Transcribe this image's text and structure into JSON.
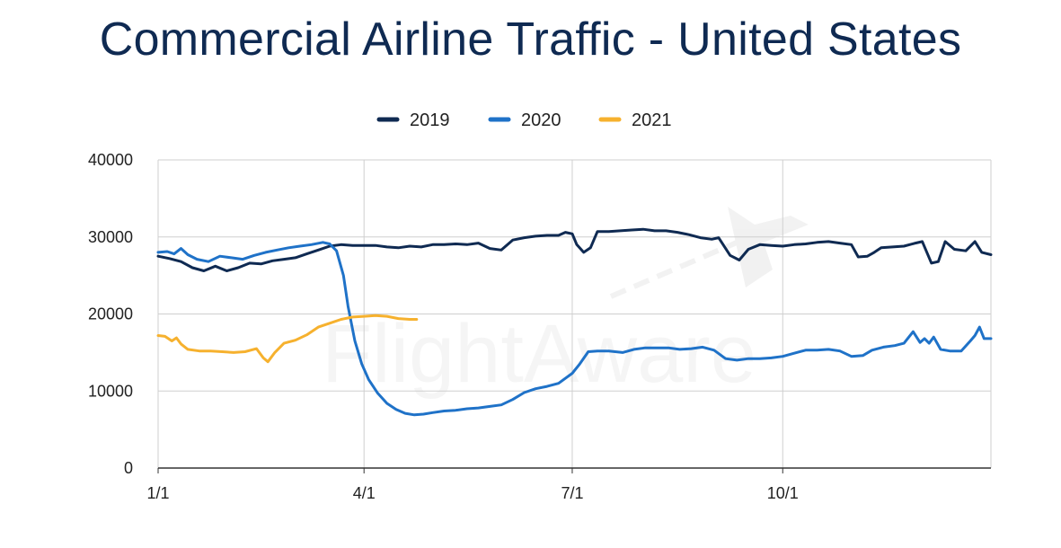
{
  "chart_data": {
    "type": "line",
    "title": "Commercial Airline Traffic - United States",
    "xlabel": "",
    "ylabel": "",
    "watermark": "FlightAware",
    "x_ticks": [
      {
        "label": "1/1",
        "day": 0
      },
      {
        "label": "4/1",
        "day": 90
      },
      {
        "label": "7/1",
        "day": 181
      },
      {
        "label": "10/1",
        "day": 273
      }
    ],
    "xlim": [
      0,
      364
    ],
    "ylim": [
      0,
      40000
    ],
    "y_ticks": [
      "40000",
      "30000",
      "20000",
      "10000",
      "0"
    ],
    "legend": [
      "2019",
      "2020",
      "2021"
    ],
    "legend_position": "top",
    "series": [
      {
        "name": "2019",
        "color": "#0f2a52",
        "points": [
          [
            0,
            27500
          ],
          [
            5,
            27200
          ],
          [
            10,
            26800
          ],
          [
            15,
            26000
          ],
          [
            20,
            25600
          ],
          [
            25,
            26200
          ],
          [
            30,
            25600
          ],
          [
            35,
            26000
          ],
          [
            40,
            26600
          ],
          [
            45,
            26500
          ],
          [
            50,
            26900
          ],
          [
            55,
            27100
          ],
          [
            60,
            27300
          ],
          [
            65,
            27800
          ],
          [
            70,
            28300
          ],
          [
            75,
            28800
          ],
          [
            80,
            29000
          ],
          [
            85,
            28900
          ],
          [
            90,
            28900
          ],
          [
            95,
            28900
          ],
          [
            100,
            28700
          ],
          [
            105,
            28600
          ],
          [
            110,
            28800
          ],
          [
            115,
            28700
          ],
          [
            120,
            29000
          ],
          [
            125,
            29000
          ],
          [
            130,
            29100
          ],
          [
            135,
            29000
          ],
          [
            140,
            29200
          ],
          [
            145,
            28500
          ],
          [
            150,
            28300
          ],
          [
            155,
            29600
          ],
          [
            160,
            29900
          ],
          [
            165,
            30100
          ],
          [
            170,
            30200
          ],
          [
            175,
            30200
          ],
          [
            178,
            30600
          ],
          [
            181,
            30400
          ],
          [
            183,
            29000
          ],
          [
            186,
            28000
          ],
          [
            189,
            28600
          ],
          [
            192,
            30700
          ],
          [
            197,
            30700
          ],
          [
            202,
            30800
          ],
          [
            207,
            30900
          ],
          [
            212,
            31000
          ],
          [
            217,
            30800
          ],
          [
            222,
            30800
          ],
          [
            227,
            30600
          ],
          [
            232,
            30300
          ],
          [
            237,
            29900
          ],
          [
            242,
            29700
          ],
          [
            245,
            29900
          ],
          [
            250,
            27600
          ],
          [
            254,
            27000
          ],
          [
            258,
            28400
          ],
          [
            263,
            29000
          ],
          [
            268,
            28900
          ],
          [
            273,
            28800
          ],
          [
            278,
            29000
          ],
          [
            283,
            29100
          ],
          [
            288,
            29300
          ],
          [
            293,
            29400
          ],
          [
            298,
            29200
          ],
          [
            303,
            29000
          ],
          [
            306,
            27400
          ],
          [
            310,
            27500
          ],
          [
            313,
            28000
          ],
          [
            316,
            28600
          ],
          [
            321,
            28700
          ],
          [
            326,
            28800
          ],
          [
            331,
            29200
          ],
          [
            334,
            29400
          ],
          [
            338,
            26600
          ],
          [
            341,
            26800
          ],
          [
            344,
            29400
          ],
          [
            348,
            28400
          ],
          [
            353,
            28200
          ],
          [
            357,
            29400
          ],
          [
            360,
            28000
          ],
          [
            364,
            27700
          ]
        ]
      },
      {
        "name": "2020",
        "color": "#1f72c8",
        "points": [
          [
            0,
            28000
          ],
          [
            4,
            28100
          ],
          [
            7,
            27800
          ],
          [
            10,
            28500
          ],
          [
            13,
            27700
          ],
          [
            17,
            27100
          ],
          [
            22,
            26800
          ],
          [
            27,
            27500
          ],
          [
            32,
            27300
          ],
          [
            37,
            27100
          ],
          [
            42,
            27600
          ],
          [
            47,
            28000
          ],
          [
            52,
            28300
          ],
          [
            57,
            28600
          ],
          [
            62,
            28800
          ],
          [
            67,
            29000
          ],
          [
            72,
            29300
          ],
          [
            75,
            29100
          ],
          [
            78,
            28200
          ],
          [
            81,
            25000
          ],
          [
            83,
            21000
          ],
          [
            86,
            16500
          ],
          [
            89,
            13500
          ],
          [
            92,
            11500
          ],
          [
            96,
            9700
          ],
          [
            100,
            8400
          ],
          [
            104,
            7600
          ],
          [
            108,
            7100
          ],
          [
            112,
            6900
          ],
          [
            116,
            7000
          ],
          [
            120,
            7200
          ],
          [
            125,
            7400
          ],
          [
            130,
            7500
          ],
          [
            135,
            7700
          ],
          [
            140,
            7800
          ],
          [
            145,
            8000
          ],
          [
            150,
            8200
          ],
          [
            155,
            8900
          ],
          [
            160,
            9800
          ],
          [
            165,
            10300
          ],
          [
            170,
            10600
          ],
          [
            175,
            11000
          ],
          [
            181,
            12300
          ],
          [
            184,
            13400
          ],
          [
            188,
            15100
          ],
          [
            192,
            15200
          ],
          [
            197,
            15200
          ],
          [
            203,
            15000
          ],
          [
            208,
            15400
          ],
          [
            213,
            15600
          ],
          [
            218,
            15600
          ],
          [
            223,
            15600
          ],
          [
            228,
            15400
          ],
          [
            233,
            15500
          ],
          [
            238,
            15700
          ],
          [
            243,
            15300
          ],
          [
            248,
            14200
          ],
          [
            253,
            14000
          ],
          [
            258,
            14200
          ],
          [
            263,
            14200
          ],
          [
            268,
            14300
          ],
          [
            273,
            14500
          ],
          [
            278,
            14900
          ],
          [
            283,
            15300
          ],
          [
            288,
            15300
          ],
          [
            293,
            15400
          ],
          [
            298,
            15200
          ],
          [
            303,
            14500
          ],
          [
            308,
            14600
          ],
          [
            312,
            15300
          ],
          [
            317,
            15700
          ],
          [
            322,
            15900
          ],
          [
            326,
            16200
          ],
          [
            330,
            17700
          ],
          [
            333,
            16300
          ],
          [
            335,
            16800
          ],
          [
            337,
            16200
          ],
          [
            339,
            17000
          ],
          [
            342,
            15400
          ],
          [
            346,
            15200
          ],
          [
            351,
            15200
          ],
          [
            355,
            16500
          ],
          [
            357,
            17200
          ],
          [
            359,
            18300
          ],
          [
            361,
            16800
          ],
          [
            364,
            16800
          ]
        ]
      },
      {
        "name": "2021",
        "color": "#f6b12e",
        "points": [
          [
            0,
            17200
          ],
          [
            3,
            17100
          ],
          [
            6,
            16500
          ],
          [
            8,
            16900
          ],
          [
            10,
            16100
          ],
          [
            13,
            15400
          ],
          [
            18,
            15200
          ],
          [
            23,
            15200
          ],
          [
            28,
            15100
          ],
          [
            33,
            15000
          ],
          [
            38,
            15100
          ],
          [
            43,
            15500
          ],
          [
            46,
            14300
          ],
          [
            48,
            13800
          ],
          [
            51,
            15000
          ],
          [
            55,
            16200
          ],
          [
            60,
            16600
          ],
          [
            65,
            17300
          ],
          [
            70,
            18300
          ],
          [
            75,
            18800
          ],
          [
            80,
            19300
          ],
          [
            85,
            19600
          ],
          [
            90,
            19700
          ],
          [
            95,
            19800
          ],
          [
            100,
            19700
          ],
          [
            105,
            19400
          ],
          [
            110,
            19300
          ],
          [
            113,
            19300
          ]
        ]
      }
    ]
  }
}
